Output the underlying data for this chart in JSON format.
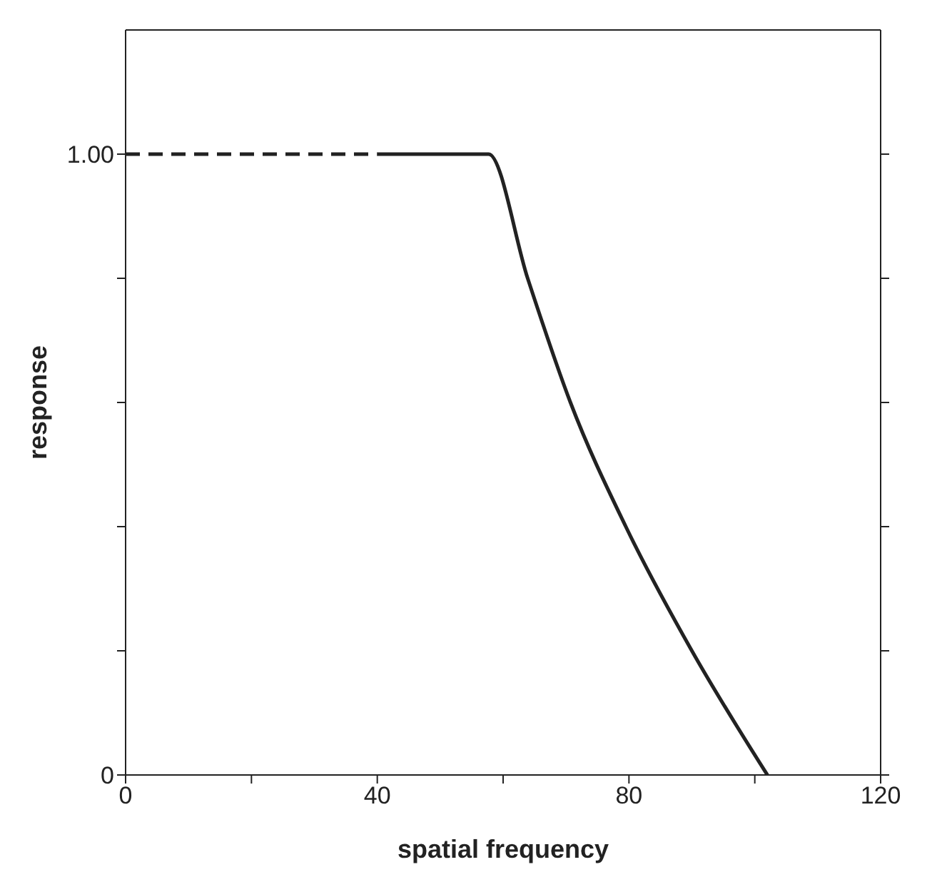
{
  "chart_data": {
    "type": "line",
    "xlabel": "spatial frequency",
    "ylabel": "response",
    "xlim": [
      0,
      120
    ],
    "xticks": [
      0,
      {
        "value": 20,
        "label": null
      },
      40,
      {
        "value": 60,
        "label": null
      },
      80,
      {
        "value": 100,
        "label": null
      },
      120
    ],
    "ylim": [
      0,
      1.2
    ],
    "yticks": [
      0,
      {
        "value": 0.2,
        "label": null
      },
      {
        "value": 0.4,
        "label": null
      },
      {
        "value": 0.6,
        "label": null
      },
      {
        "value": 0.8,
        "label": null
      },
      {
        "value": 1,
        "label": "1.00"
      }
    ],
    "marker": "none",
    "series": [
      {
        "color": "#222222",
        "line_style": "dashed",
        "x": [
          0,
          40
        ],
        "values": [
          1,
          1
        ]
      },
      {
        "color": "#222222",
        "line_style": "solid",
        "x": [
          40,
          57.7,
          63.9,
          70.7,
          79.5,
          90,
          102
        ],
        "values": [
          1,
          1,
          0.8,
          0.6,
          0.4,
          0.2,
          0
        ]
      }
    ]
  }
}
